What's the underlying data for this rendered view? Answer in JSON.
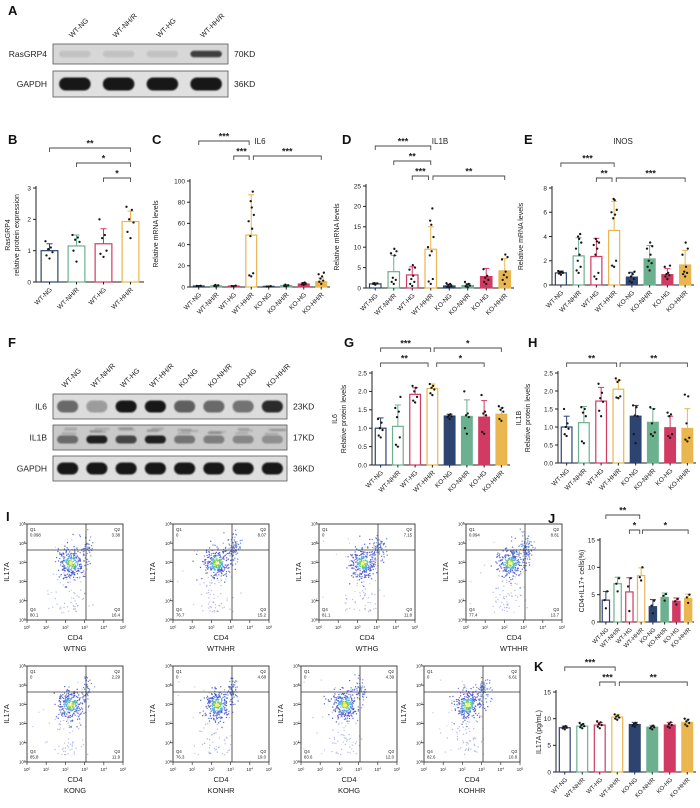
{
  "figure_bg": "#ffffff",
  "palette": {
    "navy": "#2e4470",
    "green": "#6cb18f",
    "crimson": "#d13a63",
    "yellow": "#e9b64f",
    "dot": "#161616",
    "axis": "#222222",
    "bracket": "#4a4a4a"
  },
  "categories_wt": [
    "WT-NG",
    "WT-NH/R",
    "WT-HG",
    "WT-HH/R"
  ],
  "categories_all": [
    "WT-NG",
    "WT-NH/R",
    "WT-HG",
    "WT-HH/R",
    "KO-NG",
    "KO-NH/R",
    "KO-HG",
    "KO-HH/R"
  ],
  "panels": {
    "A": {
      "letter": "A",
      "lanes": [
        "WT-NG",
        "WT-NH/R",
        "WT-HG",
        "WT-HH/R"
      ],
      "rows": [
        {
          "label": "RasGRP4",
          "size": "70KD",
          "band_intensities": [
            0.1,
            0.1,
            0.1,
            0.75
          ]
        },
        {
          "label": "GAPDH",
          "size": "36KD",
          "band_intensities": [
            0.95,
            0.95,
            0.95,
            0.95
          ]
        }
      ]
    },
    "B": {
      "letter": "B"
    },
    "C": {
      "letter": "C"
    },
    "D": {
      "letter": "D"
    },
    "E": {
      "letter": "E"
    },
    "F": {
      "letter": "F",
      "lanes": [
        "WT-NG",
        "WT-NH/R",
        "WT-HG",
        "WT-HH/R",
        "KO-NG",
        "KO-NH/R",
        "KO-HG",
        "KO-HH/R"
      ],
      "rows": [
        {
          "label": "IL6",
          "size": "23KD",
          "band_intensities": [
            0.55,
            0.3,
            0.95,
            0.95,
            0.6,
            0.55,
            0.5,
            0.85
          ]
        },
        {
          "label": "IL1B",
          "size": "17KD",
          "band_intensities": [
            0.5,
            0.9,
            0.7,
            0.9,
            0.45,
            0.4,
            0.35,
            0.3
          ]
        },
        {
          "label": "GAPDH",
          "size": "36KD",
          "band_intensities": [
            0.95,
            0.95,
            0.95,
            0.95,
            0.95,
            0.95,
            0.95,
            0.95
          ]
        }
      ]
    },
    "G": {
      "letter": "G"
    },
    "H": {
      "letter": "H"
    },
    "I": {
      "letter": "I",
      "xlabel": "CD4",
      "ylabel": "IL17A",
      "quadrant_names": [
        "Q1",
        "Q2",
        "Q3",
        "Q4"
      ],
      "decade_exponents": [
        "0",
        "1",
        "2",
        "3",
        "4",
        "5"
      ],
      "plots": [
        {
          "title": "WTNG",
          "q1": "0.098",
          "q2": "3.38",
          "q3": "16.4",
          "q4": "80.1"
        },
        {
          "title": "WTNHR",
          "q1": "0",
          "q2": "8.07",
          "q3": "15.2",
          "q4": "76.7"
        },
        {
          "title": "WTHG",
          "q1": "0",
          "q2": "7.15",
          "q3": "11.8",
          "q4": "81.1"
        },
        {
          "title": "WTHHR",
          "q1": "0.094",
          "q2": "8.81",
          "q3": "13.7",
          "q4": "77.4"
        },
        {
          "title": "KONG",
          "q1": "0",
          "q2": "2.29",
          "q3": "11.9",
          "q4": "85.8"
        },
        {
          "title": "KONHR",
          "q1": "0",
          "q2": "4.68",
          "q3": "19.0",
          "q4": "76.3"
        },
        {
          "title": "KOHG",
          "q1": "0",
          "q2": "4.39",
          "q3": "12.0",
          "q4": "83.6"
        },
        {
          "title": "KOHHR",
          "q1": "0",
          "q2": "6.61",
          "q3": "10.8",
          "q4": "82.6"
        }
      ]
    },
    "J": {
      "letter": "J"
    },
    "K": {
      "letter": "K"
    }
  },
  "chart_data": [
    {
      "id": "B",
      "type": "bar",
      "title": "",
      "ylabel_lines": [
        "RasGRP4",
        "relative protein expression"
      ],
      "categories": [
        "WT-NG",
        "WT-NH/R",
        "WT-HG",
        "WT-HH/R"
      ],
      "values": [
        1.0,
        1.15,
        1.22,
        1.93
      ],
      "errors": [
        0.22,
        0.35,
        0.48,
        0.33
      ],
      "points": [
        [
          0.75,
          0.85,
          0.95,
          1.05,
          1.1,
          1.3
        ],
        [
          0.65,
          1.0,
          1.28,
          1.35,
          1.42,
          1.5
        ],
        [
          0.8,
          0.9,
          1.0,
          1.4,
          1.5,
          2.0
        ],
        [
          1.4,
          1.6,
          1.9,
          2.0,
          2.3,
          2.4
        ]
      ],
      "yticks": [
        "0",
        "1",
        "2",
        "3"
      ],
      "ymax": 3,
      "significance": [
        {
          "x1": 0,
          "x2": 3,
          "label": "**",
          "level": 2
        },
        {
          "x1": 1,
          "x2": 3,
          "label": "*",
          "level": 1
        },
        {
          "x1": 2,
          "x2": 3,
          "label": "*",
          "level": 0
        }
      ]
    },
    {
      "id": "C",
      "type": "bar",
      "title": "IL6",
      "ylabel_lines": [
        "Relative mRNA levels"
      ],
      "categories": [
        "WT-NG",
        "WT-NH/R",
        "WT-HG",
        "WT-HH/R",
        "KO-NG",
        "KO-NH/R",
        "KO-HG",
        "KO-HH/R"
      ],
      "values": [
        1.0,
        1.1,
        0.9,
        49,
        0.6,
        1.4,
        2.8,
        5.0
      ],
      "errors": [
        0.3,
        0.6,
        0.4,
        38,
        0.3,
        0.9,
        1.2,
        3.5
      ],
      "points": [
        [
          0.8,
          1.0,
          1.2
        ],
        [
          0.5,
          1.0,
          1.6,
          2.0
        ],
        [
          0.6,
          0.9,
          1.3
        ],
        [
          10,
          11,
          13,
          48,
          55,
          62,
          68,
          75,
          81,
          90
        ],
        [
          0.3,
          0.5,
          0.8
        ],
        [
          0.6,
          1.0,
          1.5,
          2.2
        ],
        [
          2.0,
          2.5,
          3.0,
          3.6,
          4.2
        ],
        [
          3,
          5,
          6,
          8,
          10,
          12,
          13.5
        ]
      ],
      "yticks": [
        "0",
        "20",
        "40",
        "60",
        "80",
        "100"
      ],
      "ymax": 100,
      "significance": [
        {
          "x1": 0,
          "x2": 2.88,
          "label": "***",
          "level": 2
        },
        {
          "x1": 2,
          "x2": 2.88,
          "label": "***",
          "level": 1
        },
        {
          "x1": 3.12,
          "x2": 7,
          "label": "***",
          "level": 1
        }
      ]
    },
    {
      "id": "D",
      "type": "bar",
      "title": "IL1B",
      "ylabel_lines": [
        "Relative mRNA levels"
      ],
      "categories": [
        "WT-NG",
        "WT-NH/R",
        "WT-HG",
        "WT-HH/R",
        "KO-NG",
        "KO-NH/R",
        "KO-HG",
        "KO-HH/R"
      ],
      "values": [
        1.0,
        4.0,
        3.2,
        9.5,
        0.5,
        0.6,
        2.8,
        4.2
      ],
      "errors": [
        0.25,
        4.0,
        2.0,
        5.5,
        0.35,
        0.5,
        2.0,
        3.0
      ],
      "points": [
        [
          0.8,
          1.0,
          1.1,
          1.2
        ],
        [
          1.0,
          1.5,
          2.0,
          2.5,
          8.0,
          8.5,
          9.0,
          9.6
        ],
        [
          0.5,
          1.0,
          1.5,
          2.2,
          3.0,
          4.5,
          5.0,
          5.6
        ],
        [
          1.0,
          1.6,
          2.2,
          8,
          9,
          10,
          12.5,
          15.5,
          16.5,
          19.5
        ],
        [
          0.2,
          0.3,
          0.5,
          0.8,
          1.0,
          1.2
        ],
        [
          0.2,
          0.4,
          0.6,
          0.8,
          1.0,
          1.5
        ],
        [
          1.0,
          1.5,
          2.0,
          2.5,
          3.0,
          4.6
        ],
        [
          1.0,
          2.0,
          2.6,
          3.2,
          4.0,
          7.0,
          7.6,
          8.2
        ]
      ],
      "yticks": [
        "0",
        "5",
        "10",
        "15",
        "20",
        "25"
      ],
      "ymax": 25,
      "significance": [
        {
          "x1": 0,
          "x2": 3,
          "label": "***",
          "level": 2
        },
        {
          "x1": 1,
          "x2": 3,
          "label": "**",
          "level": 1
        },
        {
          "x1": 2,
          "x2": 2.88,
          "label": "***",
          "level": 0
        },
        {
          "x1": 3.12,
          "x2": 7,
          "label": "**",
          "level": 0
        }
      ]
    },
    {
      "id": "E",
      "type": "bar",
      "title": "INOS",
      "ylabel_lines": [
        "Relative mRNA levels"
      ],
      "categories": [
        "WT-NG",
        "WT-NH/R",
        "WT-HG",
        "WT-HH/R",
        "KO-NG",
        "KO-NH/R",
        "KO-HG",
        "KO-HH/R"
      ],
      "values": [
        1.0,
        2.4,
        2.35,
        4.5,
        0.65,
        2.15,
        0.85,
        1.65
      ],
      "errors": [
        0.15,
        1.5,
        1.5,
        2.4,
        0.4,
        1.1,
        0.5,
        1.2
      ],
      "points": [
        [
          0.85,
          0.95,
          1.0,
          1.05,
          1.1,
          1.15
        ],
        [
          1.0,
          1.2,
          1.5,
          2.0,
          2.5,
          3.0,
          3.5,
          3.8,
          4.0,
          4.2
        ],
        [
          0.5,
          0.7,
          1.0,
          2.5,
          3.0,
          3.3,
          3.5,
          3.6,
          3.8
        ],
        [
          1.5,
          1.6,
          2.0,
          5.5,
          5.8,
          6.0,
          6.2,
          7.0,
          7.1
        ],
        [
          0.2,
          0.3,
          0.5,
          0.7,
          0.9,
          1.0,
          1.1
        ],
        [
          1.2,
          1.5,
          1.8,
          2.0,
          2.5,
          3.0,
          3.2,
          3.5
        ],
        [
          0.5,
          0.7,
          0.8,
          0.9,
          1.0,
          1.5,
          1.6
        ],
        [
          0.7,
          0.9,
          1.0,
          1.1,
          1.5,
          2.5,
          3.0,
          3.5
        ]
      ],
      "yticks": [
        "0",
        "2",
        "4",
        "6",
        "8"
      ],
      "ymax": 8,
      "significance": [
        {
          "x1": 0,
          "x2": 3,
          "label": "***",
          "level": 1
        },
        {
          "x1": 2,
          "x2": 2.88,
          "label": "**",
          "level": 0
        },
        {
          "x1": 3.12,
          "x2": 7,
          "label": "***",
          "level": 0
        }
      ]
    },
    {
      "id": "G",
      "type": "bar",
      "title": "",
      "ylabel_lines": [
        "IL6",
        "Relative protein levels"
      ],
      "categories": [
        "WT-NG",
        "WT-NH/R",
        "WT-HG",
        "WT-HH/R",
        "KO-NG",
        "KO-NH/R",
        "KO-HG",
        "KO-HH/R"
      ],
      "values": [
        1.0,
        1.05,
        1.92,
        2.08,
        1.33,
        1.32,
        1.3,
        1.38
      ],
      "errors": [
        0.28,
        0.58,
        0.18,
        0.12,
        0.05,
        0.45,
        0.45,
        0.18
      ],
      "points": [
        [
          0.75,
          0.8,
          0.95,
          1.0,
          1.15,
          1.25
        ],
        [
          0.5,
          0.55,
          0.75,
          1.3,
          1.45,
          1.55,
          1.85
        ],
        [
          1.7,
          1.75,
          1.85,
          2.0,
          2.1,
          2.15
        ],
        [
          1.9,
          1.95,
          2.05,
          2.1,
          2.15,
          2.2
        ],
        [
          1.25,
          1.3,
          1.32,
          1.35,
          1.38
        ],
        [
          0.85,
          1.0,
          1.3,
          1.35,
          1.4,
          2.0
        ],
        [
          0.85,
          0.9,
          1.35,
          1.4,
          1.45,
          1.9
        ],
        [
          1.2,
          1.25,
          1.45,
          1.5,
          1.55,
          1.6
        ]
      ],
      "yticks": [
        "0.0",
        "0.5",
        "1.0",
        "1.5",
        "2.0",
        "2.5"
      ],
      "ymax": 2.5,
      "significance": [
        {
          "x1": 0,
          "x2": 2.9,
          "label": "***",
          "level": 1
        },
        {
          "x1": 3.1,
          "x2": 7,
          "label": "*",
          "level": 1
        },
        {
          "x1": 0,
          "x2": 2.75,
          "label": "**",
          "level": 0
        },
        {
          "x1": 3.25,
          "x2": 6,
          "label": "*",
          "level": 0
        }
      ]
    },
    {
      "id": "H",
      "type": "bar",
      "title": "",
      "ylabel_lines": [
        "IL1B",
        "Relative protein levels"
      ],
      "categories": [
        "WT-NG",
        "WT-NH/R",
        "WT-HG",
        "WT-HH/R",
        "KO-NG",
        "KO-NH/R",
        "KO-HG",
        "KO-HH/R"
      ],
      "values": [
        1.0,
        1.12,
        1.72,
        2.05,
        1.3,
        1.13,
        0.98,
        0.96
      ],
      "errors": [
        0.3,
        0.45,
        0.38,
        0.25,
        0.3,
        0.38,
        0.32,
        0.55
      ],
      "points": [
        [
          0.75,
          0.8,
          0.95,
          1.0,
          1.1,
          1.5
        ],
        [
          0.55,
          0.6,
          1.3,
          1.4,
          1.5,
          1.55
        ],
        [
          1.3,
          1.45,
          1.7,
          1.8,
          1.95,
          2.2
        ],
        [
          1.8,
          1.82,
          1.85,
          2.25,
          2.3,
          2.35
        ],
        [
          0.55,
          0.8,
          1.3,
          1.32,
          1.55,
          1.6
        ],
        [
          0.75,
          0.8,
          0.85,
          1.1,
          1.5,
          1.55
        ],
        [
          0.7,
          0.75,
          0.8,
          1.3,
          1.35,
          1.4
        ],
        [
          0.6,
          0.65,
          0.7,
          1.1,
          1.85,
          1.9
        ]
      ],
      "yticks": [
        "0.0",
        "0.5",
        "1.0",
        "1.5",
        "2.0",
        "2.5"
      ],
      "ymax": 2.5,
      "significance": [
        {
          "x1": 0,
          "x2": 2.9,
          "label": "**",
          "level": 0
        },
        {
          "x1": 3.1,
          "x2": 7,
          "label": "**",
          "level": 0
        }
      ]
    },
    {
      "id": "J",
      "type": "bar",
      "title": "",
      "ylabel_lines": [
        "CD4+IL17+ cells(%)"
      ],
      "categories": [
        "WT-NG",
        "WT-NH/R",
        "WT-HG",
        "WT-HH/R",
        "KO-NG",
        "KO-NH/R",
        "KO-HG",
        "KO-HH/R"
      ],
      "values": [
        4.0,
        7.0,
        5.5,
        8.5,
        2.8,
        4.5,
        3.8,
        4.3
      ],
      "errors": [
        1.6,
        1.2,
        2.6,
        1.4,
        1.3,
        0.8,
        0.6,
        0.8
      ],
      "points": [
        [
          2.5,
          4.0,
          5.6
        ],
        [
          5.6,
          7.0,
          8.0
        ],
        [
          2.0,
          6.5,
          8.0
        ],
        [
          7.6,
          8.2,
          10.0
        ],
        [
          1.6,
          3.0,
          3.9
        ],
        [
          3.9,
          4.8,
          5.1
        ],
        [
          3.2,
          3.8,
          4.2
        ],
        [
          3.5,
          4.5,
          5.0
        ]
      ],
      "yticks": [
        "0",
        "5",
        "10",
        "15"
      ],
      "ymax": 15,
      "significance": [
        {
          "x1": 0,
          "x2": 2.88,
          "label": "**",
          "level": 1
        },
        {
          "x1": 2,
          "x2": 2.88,
          "label": "*",
          "level": 0
        },
        {
          "x1": 3.12,
          "x2": 7,
          "label": "*",
          "level": 0
        }
      ]
    },
    {
      "id": "K",
      "type": "bar",
      "title": "",
      "ylabel_lines": [
        "IL17A (pg/mL)"
      ],
      "categories": [
        "WT-NG",
        "WT-NH/R",
        "WT-HG",
        "WT-HH/R",
        "KO-NG",
        "KO-NH/R",
        "KO-HG",
        "KO-HH/R"
      ],
      "values": [
        8.3,
        8.6,
        8.8,
        10.3,
        8.9,
        8.4,
        8.8,
        9.3
      ],
      "errors": [
        0.3,
        0.4,
        0.5,
        0.5,
        0.4,
        0.35,
        0.5,
        0.6
      ],
      "points": [
        [
          8.0,
          8.2,
          8.3,
          8.5,
          8.6
        ],
        [
          8.2,
          8.4,
          8.6,
          8.8,
          9.0,
          9.2
        ],
        [
          8.2,
          8.5,
          8.8,
          9.0,
          9.3,
          9.5
        ],
        [
          9.8,
          10.0,
          10.2,
          10.4,
          10.6,
          10.8
        ],
        [
          8.5,
          8.7,
          8.9,
          9.0,
          9.2
        ],
        [
          8.0,
          8.2,
          8.4,
          8.5,
          8.7
        ],
        [
          8.3,
          8.5,
          8.8,
          9.0,
          9.3
        ],
        [
          8.6,
          8.9,
          9.2,
          9.5,
          9.8,
          10.0
        ]
      ],
      "yticks": [
        "0",
        "5",
        "10",
        "15"
      ],
      "ymax": 15,
      "significance": [
        {
          "x1": 0,
          "x2": 2.88,
          "label": "***",
          "level": 1
        },
        {
          "x1": 2,
          "x2": 2.88,
          "label": "***",
          "level": 0
        },
        {
          "x1": 3.12,
          "x2": 7,
          "label": "**",
          "level": 0
        }
      ]
    }
  ]
}
